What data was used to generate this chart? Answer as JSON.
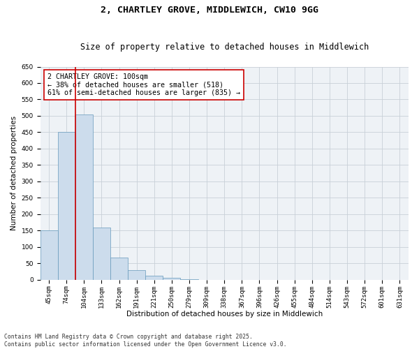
{
  "title_line1": "2, CHARTLEY GROVE, MIDDLEWICH, CW10 9GG",
  "title_line2": "Size of property relative to detached houses in Middlewich",
  "xlabel": "Distribution of detached houses by size in Middlewich",
  "ylabel": "Number of detached properties",
  "categories": [
    "45sqm",
    "74sqm",
    "104sqm",
    "133sqm",
    "162sqm",
    "191sqm",
    "221sqm",
    "250sqm",
    "279sqm",
    "309sqm",
    "338sqm",
    "367sqm",
    "396sqm",
    "426sqm",
    "455sqm",
    "484sqm",
    "514sqm",
    "543sqm",
    "572sqm",
    "601sqm",
    "631sqm"
  ],
  "values": [
    150,
    450,
    505,
    160,
    68,
    30,
    12,
    6,
    2,
    0,
    0,
    0,
    0,
    0,
    0,
    0,
    0,
    0,
    0,
    0,
    0
  ],
  "bar_color": "#ccdcec",
  "bar_edge_color": "#6699bb",
  "vline_color": "#cc0000",
  "annotation_text": "2 CHARTLEY GROVE: 100sqm\n← 38% of detached houses are smaller (518)\n61% of semi-detached houses are larger (835) →",
  "annotation_box_color": "#ffffff",
  "annotation_box_edge": "#cc0000",
  "ylim": [
    0,
    650
  ],
  "yticks": [
    0,
    50,
    100,
    150,
    200,
    250,
    300,
    350,
    400,
    450,
    500,
    550,
    600,
    650
  ],
  "grid_color": "#c8d0d8",
  "bg_color": "#eef2f6",
  "footnote": "Contains HM Land Registry data © Crown copyright and database right 2025.\nContains public sector information licensed under the Open Government Licence v3.0.",
  "title_fontsize": 9.5,
  "subtitle_fontsize": 8.5,
  "axis_label_fontsize": 7.5,
  "tick_fontsize": 6.5,
  "annotation_fontsize": 7.2,
  "footnote_fontsize": 5.8
}
